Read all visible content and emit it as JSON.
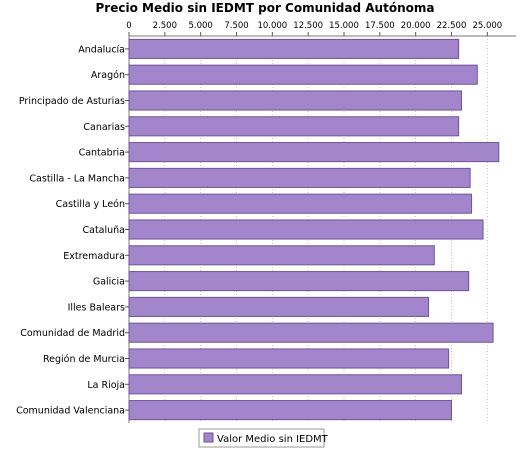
{
  "chart_data": {
    "type": "bar",
    "orientation": "horizontal",
    "title": "Precio Medio sin IEDMT por Comunidad Autónoma",
    "xlabel": "",
    "ylabel": "",
    "xlim": [
      0,
      27000
    ],
    "x_ticks": [
      0,
      2500,
      5000,
      7500,
      10000,
      12500,
      15000,
      17500,
      20000,
      22500,
      25000
    ],
    "x_tick_labels": [
      "0",
      "2.500",
      "5.000",
      "7.500",
      "10.000",
      "12.500",
      "15.000",
      "17.500",
      "20.000",
      "22.500",
      "25.000"
    ],
    "x_axis_position": "top",
    "grid": true,
    "legend_position": "bottom",
    "categories": [
      "Andalucía",
      "Aragón",
      "Principado de Asturias",
      "Canarias",
      "Cantabria",
      "Castilla - La Mancha",
      "Castilla y León",
      "Cataluña",
      "Extremadura",
      "Galicia",
      "Illes Balears",
      "Comunidad de Madrid",
      "Región de Murcia",
      "La Rioja",
      "Comunidad Valenciana"
    ],
    "series": [
      {
        "name": "Valor Medio sin IEDMT",
        "color": "#a385cc",
        "stroke": "#6e5596",
        "values": [
          23000,
          24300,
          23200,
          23000,
          25800,
          23800,
          23900,
          24700,
          21300,
          23700,
          20900,
          25400,
          22300,
          23200,
          22500
        ]
      }
    ]
  }
}
